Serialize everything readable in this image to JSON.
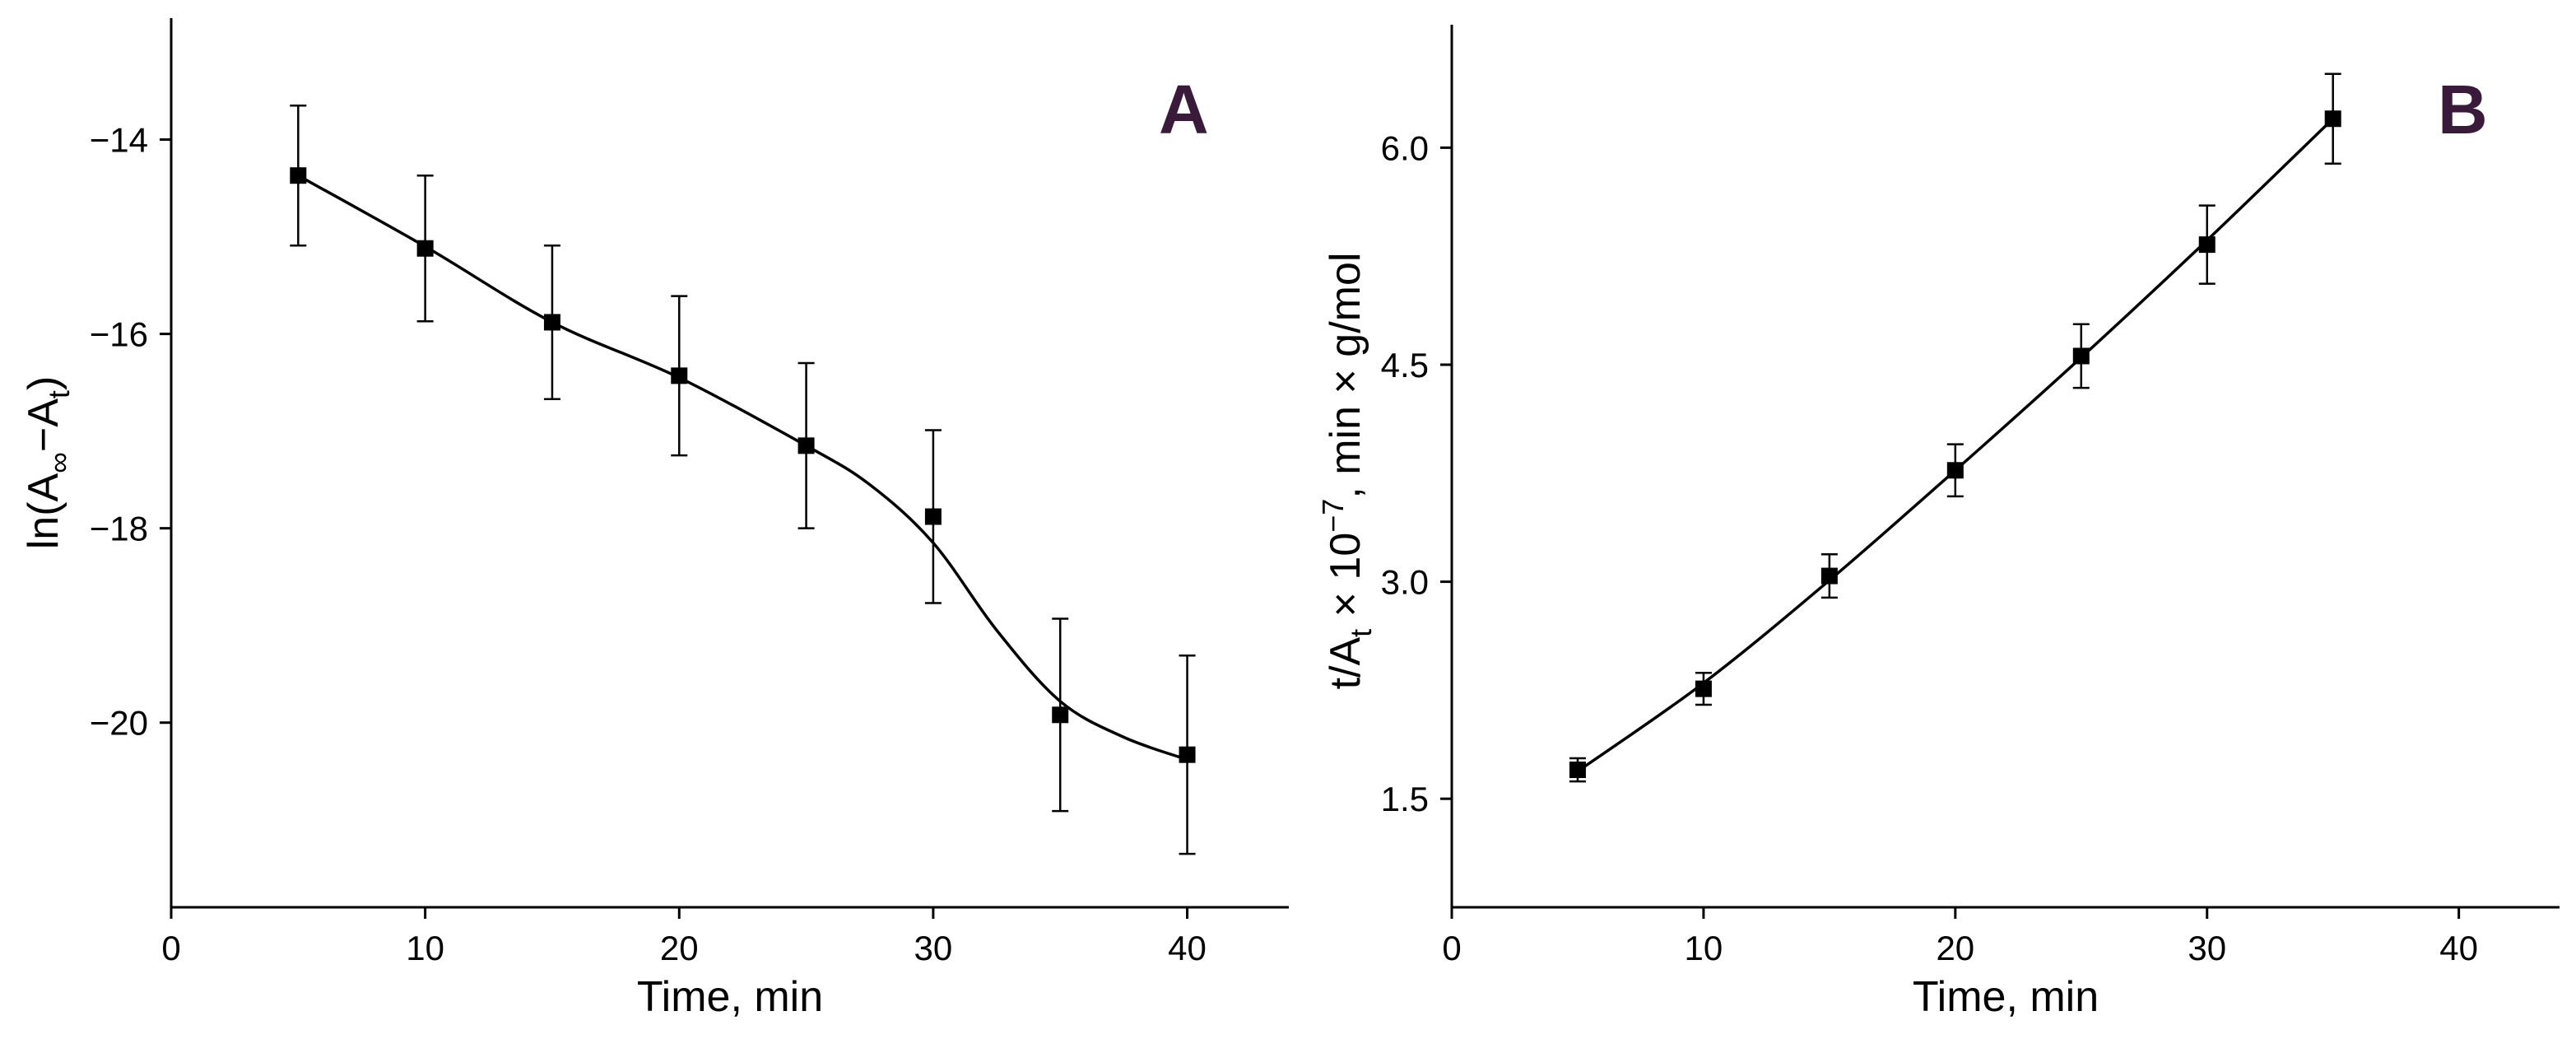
{
  "chart_data": [
    {
      "type": "scatter",
      "panel_label": "A",
      "xlabel": "Time, min",
      "ylabel_parts": {
        "pre": "ln(A",
        "sub1": "∞",
        "mid": "−A",
        "sub2": "t",
        "post": ")"
      },
      "xlim": [
        0,
        44
      ],
      "ylim": [
        -21.9,
        -12.75
      ],
      "xticks": [
        0,
        10,
        20,
        30,
        40
      ],
      "xtick_labels": [
        "0",
        "10",
        "20",
        "30",
        "40"
      ],
      "yticks": [
        -14,
        -16,
        -18,
        -20
      ],
      "ytick_labels": [
        "−14",
        "−16",
        "−18",
        "−20"
      ],
      "x": [
        5,
        10,
        15,
        20,
        25,
        30,
        35,
        40
      ],
      "y": [
        -14.37,
        -15.12,
        -15.88,
        -16.43,
        -17.15,
        -17.88,
        -19.92,
        -20.33
      ],
      "yerr": [
        0.72,
        0.75,
        0.79,
        0.82,
        0.85,
        0.89,
        0.99,
        1.02
      ],
      "fit_x": [
        5,
        10,
        15,
        20,
        25,
        27.5,
        30,
        32.5,
        35,
        37.5,
        40
      ],
      "fit_y": [
        -14.37,
        -15.1,
        -15.88,
        -16.45,
        -17.15,
        -17.55,
        -18.15,
        -19.05,
        -19.78,
        -20.15,
        -20.38
      ]
    },
    {
      "type": "scatter",
      "panel_label": "B",
      "xlabel": "Time, min",
      "ylabel_parts": {
        "pre": "t/A",
        "sub1": "t",
        "mid": " × 10",
        "sup": "−7",
        "post": ", min × g/mol"
      },
      "xlim": [
        0,
        44
      ],
      "ylim": [
        0.75,
        6.85
      ],
      "xticks": [
        0,
        10,
        20,
        30,
        40
      ],
      "xtick_labels": [
        "0",
        "10",
        "20",
        "30",
        "40"
      ],
      "yticks": [
        1.5,
        3.0,
        4.5,
        6.0
      ],
      "ytick_labels": [
        "1.5",
        "3.0",
        "4.5",
        "6.0"
      ],
      "x": [
        5,
        10,
        15,
        20,
        25,
        30,
        35
      ],
      "y": [
        1.7,
        2.26,
        3.04,
        3.77,
        4.56,
        5.33,
        6.2
      ],
      "yerr": [
        0.08,
        0.11,
        0.15,
        0.18,
        0.22,
        0.27,
        0.31
      ],
      "fit_x": [
        5,
        10,
        15,
        20,
        25,
        30,
        35
      ],
      "fit_y": [
        1.69,
        2.3,
        3.01,
        3.77,
        4.55,
        5.36,
        6.2
      ]
    }
  ]
}
